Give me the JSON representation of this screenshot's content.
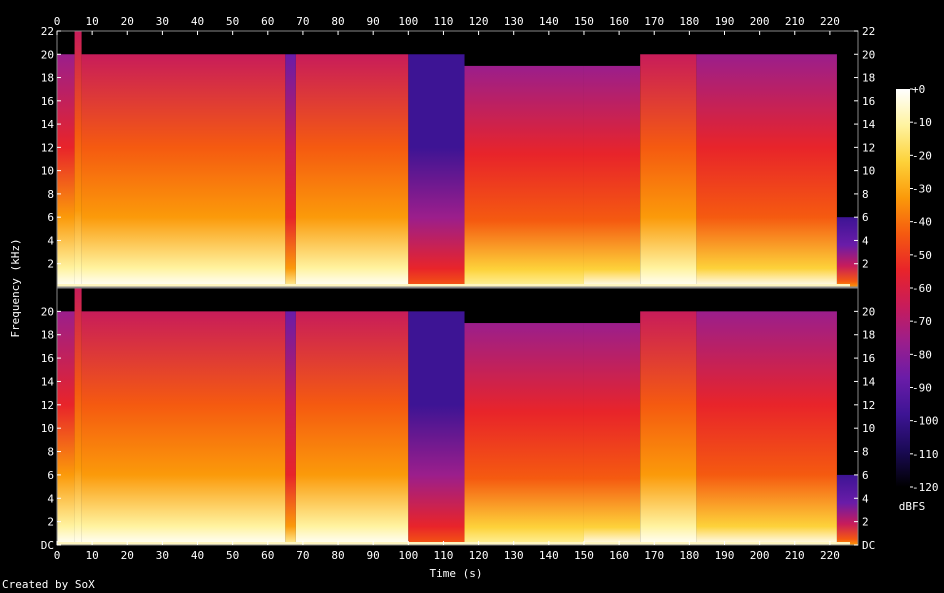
{
  "chart_data": {
    "type": "heatmap",
    "title": "",
    "xlabel": "Time (s)",
    "ylabel": "Frequency (kHz)",
    "colorbar_label": "dBFS",
    "x_ticks": [
      0,
      10,
      20,
      30,
      40,
      50,
      60,
      70,
      80,
      90,
      100,
      110,
      120,
      130,
      140,
      150,
      160,
      170,
      180,
      190,
      200,
      210,
      220
    ],
    "xlim": [
      0,
      228
    ],
    "ylim_khz": [
      0,
      22
    ],
    "y_ticks_top_channel": [
      "22",
      "20",
      "18",
      "16",
      "14",
      "12",
      "10",
      "8",
      "6",
      "4",
      "2"
    ],
    "y_ticks_bottom_channel": [
      "20",
      "18",
      "16",
      "14",
      "12",
      "10",
      "8",
      "6",
      "4",
      "2",
      "DC"
    ],
    "colorbar_ticks": [
      "+0",
      "-10",
      "-20",
      "-30",
      "-40",
      "-50",
      "-60",
      "-70",
      "-80",
      "-90",
      "-100",
      "-110",
      "-120"
    ],
    "zlim_dbfs": [
      -120,
      0
    ],
    "channels": 2,
    "colormap": [
      "#000000",
      "#1a0a55",
      "#3d1494",
      "#6a1ca8",
      "#9b1e8c",
      "#c81c5a",
      "#e8242a",
      "#f55a10",
      "#fb9a0a",
      "#fdd23a",
      "#fff3a0",
      "#ffffff"
    ],
    "cutoff_khz_by_segment": [
      {
        "t": [
          0,
          5
        ],
        "cutoff": 20,
        "level": 0.58
      },
      {
        "t": [
          5,
          7
        ],
        "cutoff": 22,
        "level": 0.6
      },
      {
        "t": [
          7,
          65
        ],
        "cutoff": 20,
        "level": 0.62
      },
      {
        "t": [
          65,
          68
        ],
        "cutoff": 20,
        "level": 0.45
      },
      {
        "t": [
          68,
          100
        ],
        "cutoff": 20,
        "level": 0.63
      },
      {
        "t": [
          100,
          116
        ],
        "cutoff": 20,
        "level": 0.22
      },
      {
        "t": [
          116,
          150
        ],
        "cutoff": 19,
        "level": 0.5
      },
      {
        "t": [
          150,
          166
        ],
        "cutoff": 19,
        "level": 0.55
      },
      {
        "t": [
          166,
          182
        ],
        "cutoff": 20,
        "level": 0.6
      },
      {
        "t": [
          182,
          222
        ],
        "cutoff": 20,
        "level": 0.56
      },
      {
        "t": [
          222,
          228
        ],
        "cutoff": 6,
        "level": 0.3
      }
    ]
  },
  "credit": "Created by SoX"
}
